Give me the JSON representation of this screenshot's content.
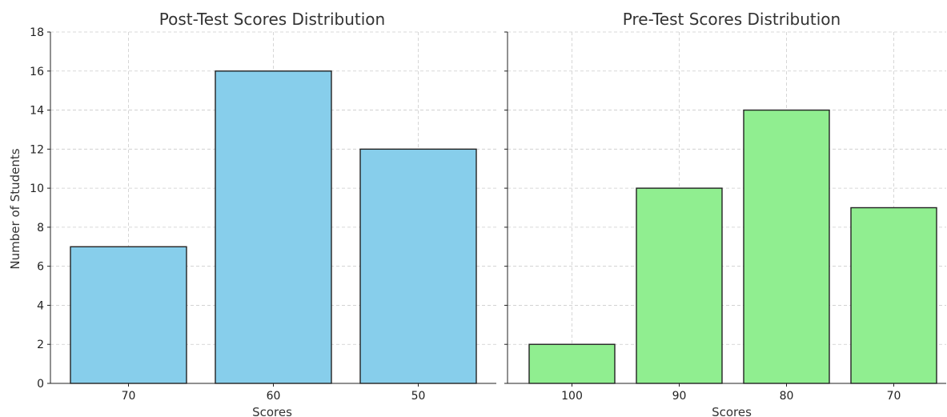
{
  "chart_data": [
    {
      "type": "bar",
      "title": "Post-Test Scores Distribution",
      "xlabel": "Scores",
      "ylabel": "Number of Students",
      "categories": [
        "70",
        "60",
        "50"
      ],
      "values": [
        7,
        16,
        12
      ],
      "ylim": [
        0,
        18
      ],
      "yticks": [
        0,
        2,
        4,
        6,
        8,
        10,
        12,
        14,
        16,
        18
      ],
      "grid": true,
      "color": "#87CEEB"
    },
    {
      "type": "bar",
      "title": "Pre-Test Scores Distribution",
      "xlabel": "Scores",
      "ylabel": "",
      "categories": [
        "100",
        "90",
        "80",
        "70"
      ],
      "values": [
        2,
        10,
        14,
        9
      ],
      "ylim": [
        0,
        18
      ],
      "yticks": [
        0,
        2,
        4,
        6,
        8,
        10,
        12,
        14,
        16,
        18
      ],
      "grid": true,
      "color": "#90EE90"
    }
  ]
}
